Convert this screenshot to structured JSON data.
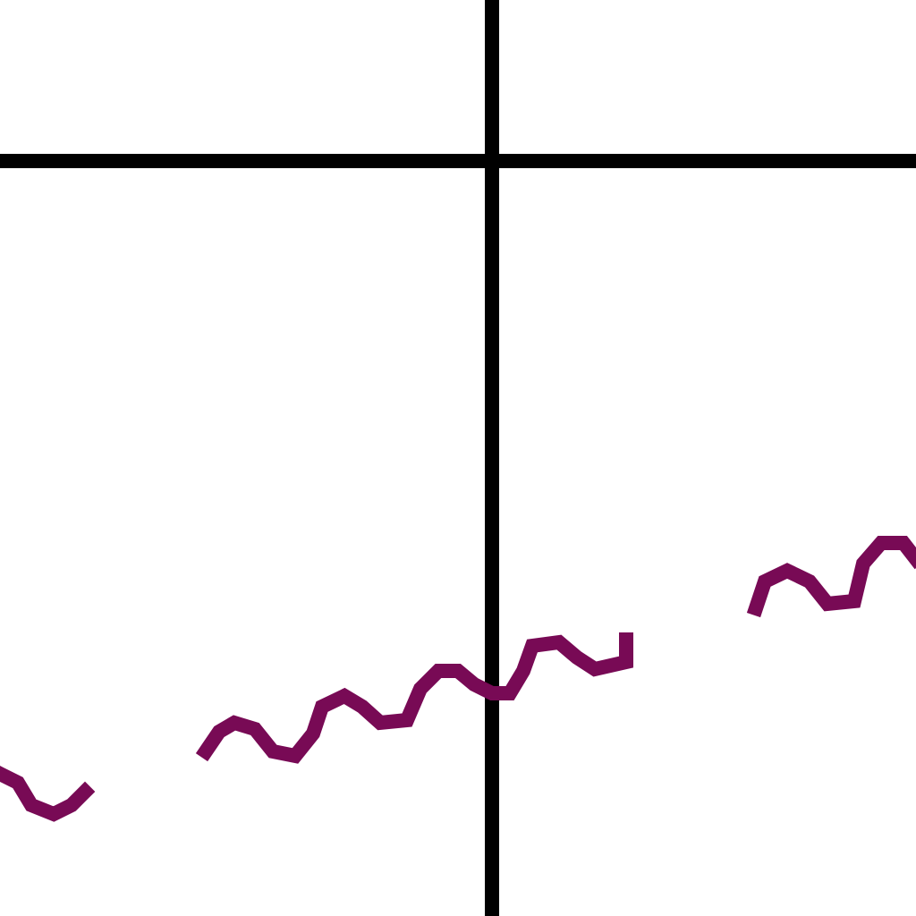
{
  "chart_data": {
    "type": "line",
    "x": [
      -5.5,
      -5.3,
      -5.15,
      -4.9,
      -4.7,
      -4.55,
      -3.8,
      -3.2,
      -3.05,
      -2.88,
      -2.65,
      -2.45,
      -2.2,
      -2.0,
      -1.9,
      -1.65,
      -1.45,
      -1.25,
      -0.95,
      -0.8,
      -0.6,
      -0.38,
      -0.2,
      0,
      0.2,
      0.35,
      0.45,
      0.75,
      0.95,
      1.15,
      1.5,
      1.5,
      2.2,
      2.95,
      3.05,
      3.3,
      3.55,
      3.75,
      4.05,
      4.15,
      4.35,
      4.6,
      4.74
    ],
    "series": [
      {
        "color": "#780a55",
        "values": [
          -6.85,
          -6.95,
          -7.2,
          -7.3,
          -7.2,
          -7.05,
          null,
          -6.6,
          -6.38,
          -6.28,
          -6.35,
          -6.6,
          -6.65,
          -6.4,
          -6.1,
          -5.98,
          -6.1,
          -6.28,
          -6.25,
          -5.9,
          -5.7,
          -5.7,
          -5.85,
          -5.95,
          -5.95,
          -5.7,
          -5.42,
          -5.38,
          -5.55,
          -5.68,
          -5.6,
          -5.35,
          null,
          -5.0,
          -4.7,
          -4.58,
          -4.7,
          -4.95,
          -4.92,
          -4.5,
          -4.27,
          -4.27,
          -4.45
        ]
      }
    ],
    "xlim": [
      -5.5,
      4.74
    ],
    "ylim": [
      -8.44,
      1.8
    ],
    "axis_color": "#000000"
  }
}
